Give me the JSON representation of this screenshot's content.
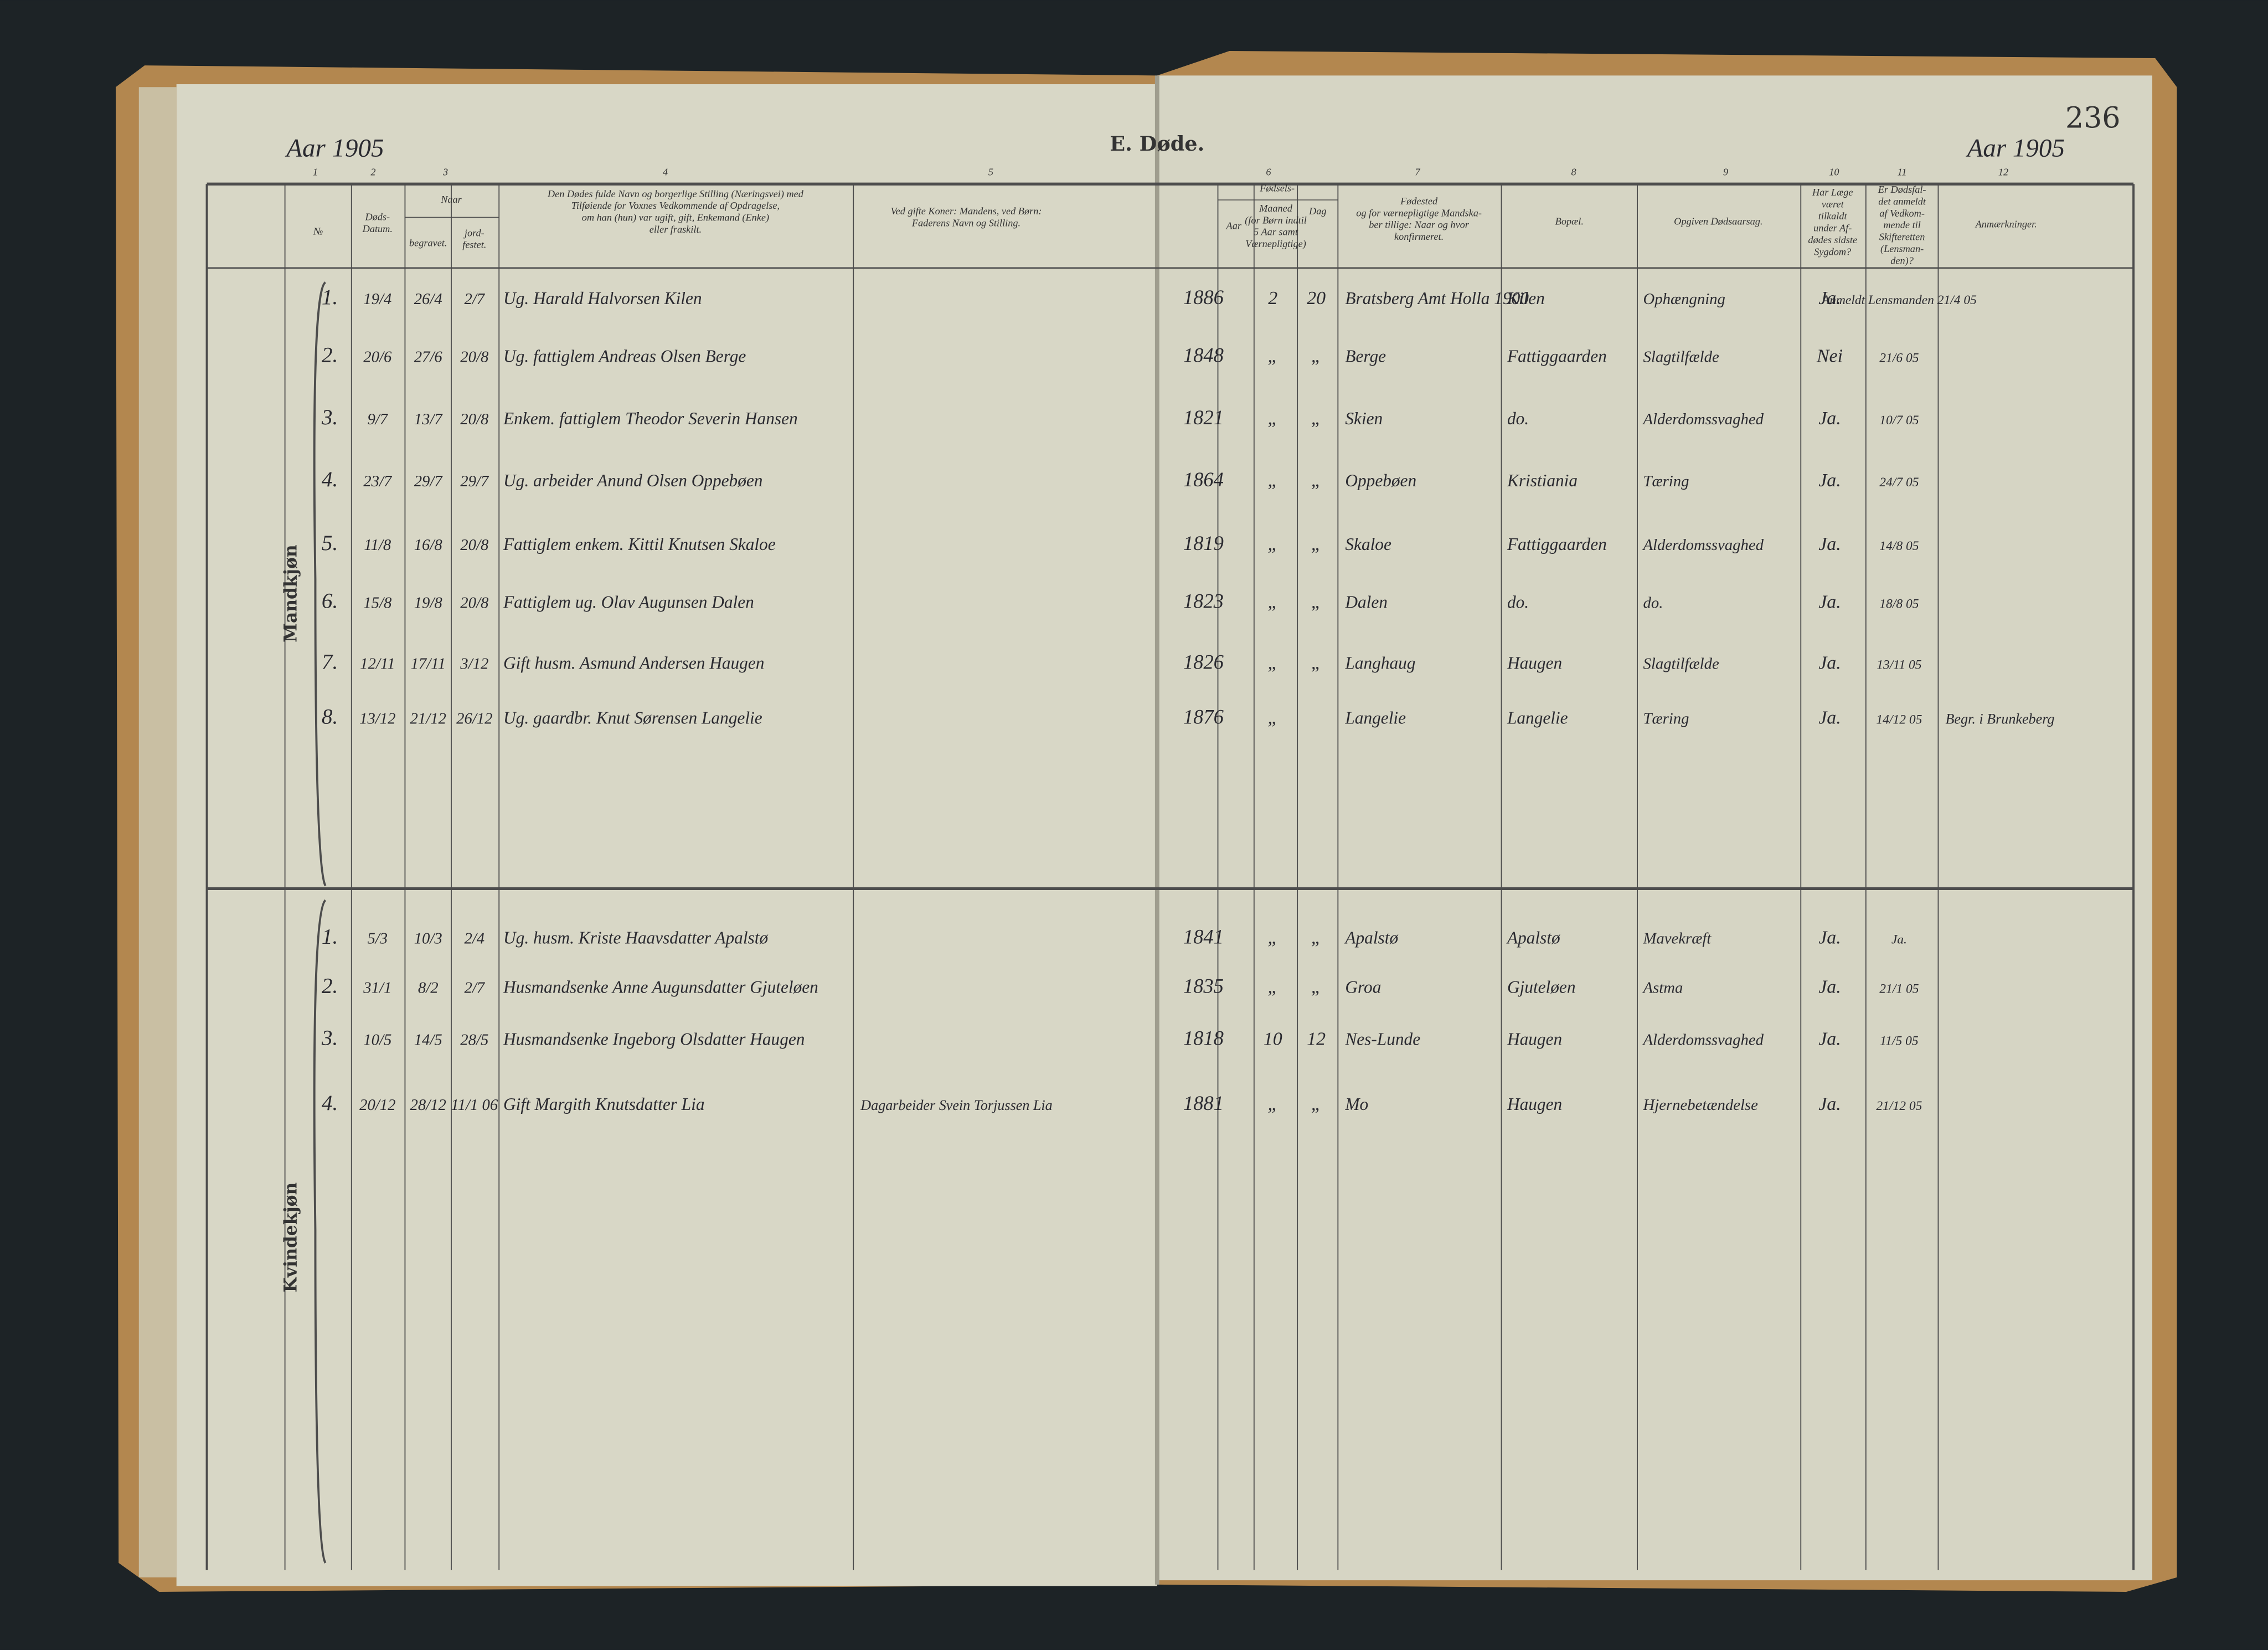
{
  "header": {
    "year_left": "Aar 1905",
    "title": "E. Døde.",
    "year_right": "Aar 1905",
    "page": "236"
  },
  "column_numbers": [
    "1",
    "2",
    "3",
    "4",
    "5",
    "6",
    "7",
    "8",
    "9",
    "10",
    "11",
    "12"
  ],
  "columns": {
    "no": [
      "№"
    ],
    "died": [
      "Døds-",
      "Datum."
    ],
    "when": [
      "Naar"
    ],
    "buried": [
      "begravet."
    ],
    "consecrated": [
      "jord-",
      "festet."
    ],
    "name": [
      "Den Dødes fulde Navn og borgerlige Stilling (Næringsvei) med",
      "Tilføiende for Voxnes Vedkommende af Opdragelse,",
      "om han (hun) var ugift, gift, Enkemand (Enke)",
      "eller fraskilt."
    ],
    "spouse": [
      "Ved gifte Koner: Mandens, ved Børn:",
      "Faderens Navn og Stilling."
    ],
    "birth": [
      "Fødsels-"
    ],
    "birth_year": [
      "Aar"
    ],
    "birth_month": [
      "Maaned",
      "(for Børn indtil",
      "5 Aar samt",
      "Værnepligtige)"
    ],
    "birth_day": [
      "Dag"
    ],
    "birthplace": [
      "Fødested",
      "og for værnepligtige Mandska-",
      "ber tillige: Naar og hvor",
      "konfirmeret."
    ],
    "residence": [
      "Bopæl."
    ],
    "cause": [
      "Opgiven Dødsaarsag."
    ],
    "doctor": [
      "Har Læge",
      "været",
      "tilkaldt",
      "under Af-",
      "dødes sidste",
      "Sygdom?"
    ],
    "reported": [
      "Er Dødsfal-",
      "det anmeldt",
      "af Vedkom-",
      "mende til",
      "Skifteretten",
      "(Lensman-",
      "den)?"
    ],
    "remarks": [
      "Anmærkninger."
    ]
  },
  "sections": [
    {
      "label": "Mandkjøn",
      "rows": [
        {
          "no": "1.",
          "died": "19/4",
          "buried": "26/4",
          "consecrated": "2/7",
          "name": "Ug. Harald Halvorsen Kilen",
          "birth_year": "1886",
          "birth_month": "2",
          "birth_day": "20",
          "birthplace": "Bratsberg Amt Holla 1900",
          "residence": "Kilen",
          "cause": "Ophængning",
          "doctor": "Ja.",
          "reported": "Anmeldt Lensmanden 21/4 05"
        },
        {
          "no": "2.",
          "died": "20/6",
          "buried": "27/6",
          "consecrated": "20/8",
          "name": "Ug. fattiglem Andreas Olsen Berge",
          "birth_year": "1848",
          "birth_month": "„",
          "birth_day": "„",
          "birthplace": "Berge",
          "residence": "Fattiggaarden",
          "cause": "Slagtilfælde",
          "doctor": "Nei",
          "reported": "21/6 05"
        },
        {
          "no": "3.",
          "died": "9/7",
          "buried": "13/7",
          "consecrated": "20/8",
          "name": "Enkem. fattiglem Theodor Severin Hansen",
          "birth_year": "1821",
          "birth_month": "„",
          "birth_day": "„",
          "birthplace": "Skien",
          "residence": "do.",
          "cause": "Alderdomssvaghed",
          "doctor": "Ja.",
          "reported": "10/7 05"
        },
        {
          "no": "4.",
          "died": "23/7",
          "buried": "29/7",
          "consecrated": "29/7",
          "name": "Ug. arbeider Anund Olsen Oppebøen",
          "birth_year": "1864",
          "birth_month": "„",
          "birth_day": "„",
          "birthplace": "Oppebøen",
          "residence": "Kristiania",
          "cause": "Tæring",
          "doctor": "Ja.",
          "reported": "24/7 05"
        },
        {
          "no": "5.",
          "died": "11/8",
          "buried": "16/8",
          "consecrated": "20/8",
          "name": "Fattiglem enkem. Kittil Knutsen Skaloe",
          "birth_year": "1819",
          "birth_month": "„",
          "birth_day": "„",
          "birthplace": "Skaloe",
          "residence": "Fattiggaarden",
          "cause": "Alderdomssvaghed",
          "doctor": "Ja.",
          "reported": "14/8 05"
        },
        {
          "no": "6.",
          "died": "15/8",
          "buried": "19/8",
          "consecrated": "20/8",
          "name": "Fattiglem ug. Olav Augunsen Dalen",
          "birth_year": "1823",
          "birth_month": "„",
          "birth_day": "„",
          "birthplace": "Dalen",
          "residence": "do.",
          "cause": "do.",
          "doctor": "Ja.",
          "reported": "18/8 05"
        },
        {
          "no": "7.",
          "died": "12/11",
          "buried": "17/11",
          "consecrated": "3/12",
          "name": "Gift husm. Asmund Andersen Haugen",
          "birth_year": "1826",
          "birth_month": "„",
          "birth_day": "„",
          "birthplace": "Langhaug",
          "residence": "Haugen",
          "cause": "Slagtilfælde",
          "doctor": "Ja.",
          "reported": "13/11 05"
        },
        {
          "no": "8.",
          "died": "13/12",
          "buried": "21/12",
          "consecrated": "26/12",
          "name": "Ug. gaardbr. Knut Sørensen Langelie",
          "birth_year": "1876",
          "birth_month": "„",
          "birthplace": "Langelie",
          "residence": "Langelie",
          "cause": "Tæring",
          "doctor": "Ja.",
          "reported": "14/12 05",
          "remarks": "Begr. i Brunkeberg"
        }
      ]
    },
    {
      "label": "Kvindekjøn",
      "rows": [
        {
          "no": "1.",
          "died": "5/3",
          "buried": "10/3",
          "consecrated": "2/4",
          "name": "Ug. husm. Kriste Haavsdatter Apalstø",
          "birth_year": "1841",
          "birth_month": "„",
          "birth_day": "„",
          "birthplace": "Apalstø",
          "residence": "Apalstø",
          "cause": "Mavekræft",
          "doctor": "Ja.",
          "reported": "Ja."
        },
        {
          "no": "2.",
          "died": "31/1",
          "buried": "8/2",
          "consecrated": "2/7",
          "name": "Husmandsenke Anne Augunsdatter Gjuteløen",
          "birth_year": "1835",
          "birth_month": "„",
          "birth_day": "„",
          "birthplace": "Groa",
          "residence": "Gjuteløen",
          "cause": "Astma",
          "doctor": "Ja.",
          "reported": "21/1 05"
        },
        {
          "no": "3.",
          "died": "10/5",
          "buried": "14/5",
          "consecrated": "28/5",
          "name": "Husmandsenke Ingeborg Olsdatter Haugen",
          "birth_year": "1818",
          "birth_month": "10",
          "birth_day": "12",
          "birthplace": "Nes-Lunde",
          "residence": "Haugen",
          "cause": "Alderdomssvaghed",
          "doctor": "Ja.",
          "reported": "11/5 05"
        },
        {
          "no": "4.",
          "died": "20/12",
          "buried": "28/12",
          "consecrated": "11/1 06",
          "name": "Gift Margith Knutsdatter Lia",
          "spouse": "Dagarbeider Svein Torjussen Lia",
          "birth_year": "1881",
          "birth_month": "„",
          "birth_day": "„",
          "birthplace": "Mo",
          "residence": "Haugen",
          "cause": "Hjernebetændelse",
          "doctor": "Ja.",
          "reported": "21/12 05"
        }
      ]
    }
  ]
}
